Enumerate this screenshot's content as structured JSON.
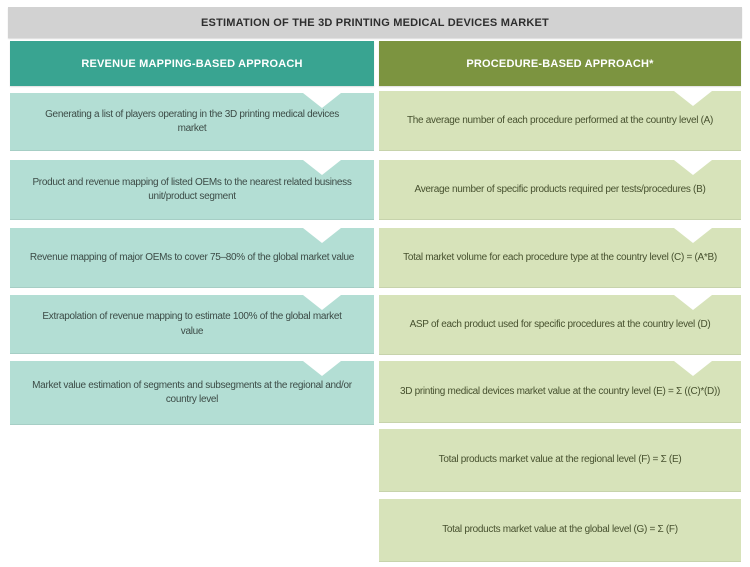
{
  "title": "ESTIMATION OF THE 3D PRINTING MEDICAL DEVICES MARKET",
  "colors": {
    "title_bar_bg": "#d2d2d2",
    "title_text": "#2e2e2e",
    "left_header_bg": "#39a491",
    "right_header_bg": "#7c9440",
    "header_text": "#ffffff",
    "left_box_bg": "#b3ded4",
    "left_box_text": "#3c4b46",
    "right_box_bg": "#d7e3ba",
    "right_box_text": "#47512f"
  },
  "columns": {
    "left": {
      "header": "REVENUE MAPPING-BASED APPROACH",
      "boxes": [
        "Generating a list of players operating in the 3D printing medical devices\nmarket",
        "Product and revenue mapping of listed OEMs to the nearest related business\nunit/product segment",
        "Revenue mapping of major OEMs to cover 75–80% of the global market value",
        "Extrapolation of revenue mapping to estimate 100% of the global market\nvalue",
        "Market value estimation of segments and subsegments at the regional and/or\ncountry level"
      ]
    },
    "right": {
      "header": "PROCEDURE-BASED APPROACH*",
      "boxes": [
        "The average number of each procedure performed at the country level (A)",
        "Average number of specific products required per tests/procedures (B)",
        "Total market volume for each procedure type at the country level (C) = (A*B)",
        "ASP of each  product used for specific procedures at the country level (D)",
        "3D printing medical devices market value at the country level (E) = Σ ((C)*(D))",
        "Total  products market value at the regional level (F) = Σ (E)",
        "Total  products market value at the global level (G) = Σ (F)"
      ]
    }
  }
}
